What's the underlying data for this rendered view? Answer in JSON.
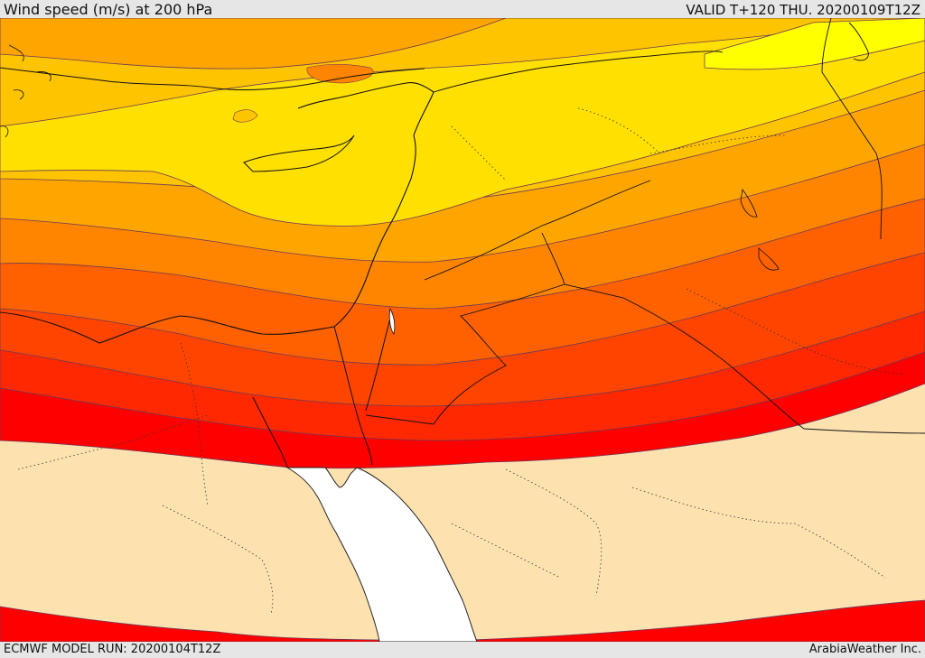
{
  "header": {
    "title": "Wind speed (m/s) at 200 hPa",
    "valid": "VALID T+120 THU. 20200109T12Z"
  },
  "footer": {
    "model_run": "ECMWF MODEL RUN: 20200104T12Z",
    "credit": "ArabiaWeather Inc."
  },
  "colors": {
    "background": "#e6e6e6",
    "calm_zone": "#fde2b0",
    "sea": "#ffffff",
    "band_1": "#ffff00",
    "band_2": "#ffe000",
    "band_3": "#ffc400",
    "band_4": "#ffa500",
    "band_5": "#ff8400",
    "band_6": "#ff6000",
    "band_7": "#ff4400",
    "band_8": "#ff2800",
    "band_9": "#ff0000",
    "contour_line": "#5a3a6a",
    "border_line": "#222222"
  }
}
